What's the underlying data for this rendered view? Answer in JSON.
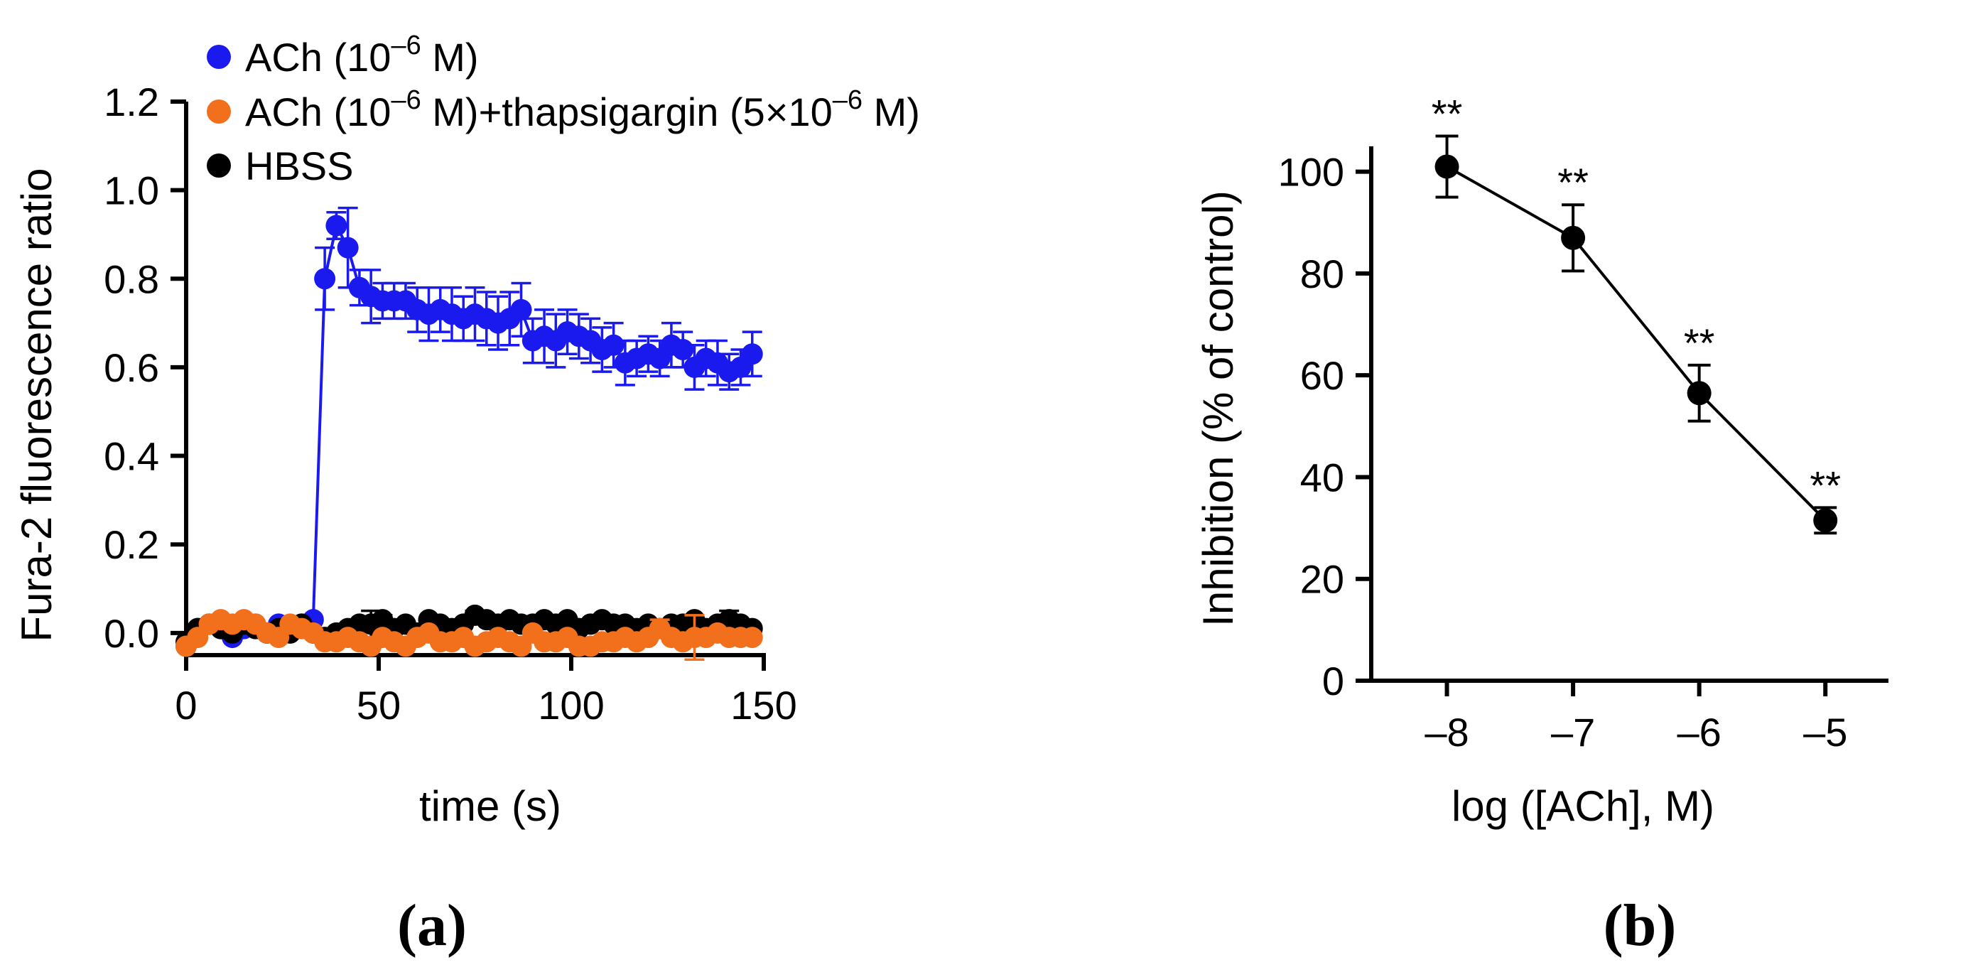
{
  "colors": {
    "ach": "#1a1aee",
    "thapsigargin": "#f26f1b",
    "hbss": "#000000"
  },
  "panels": {
    "a": "(a)",
    "b": "(b)"
  },
  "chart_data": [
    {
      "type": "scatter",
      "xlabel": "time (s)",
      "ylabel": "Fura-2 fluorescence ratio",
      "xlim": [
        0,
        150
      ],
      "ylim": [
        -0.05,
        1.2
      ],
      "xticks": [
        "0",
        "50",
        "100",
        "150"
      ],
      "yticks": [
        "0.0",
        "0.2",
        "0.4",
        "0.6",
        "0.8",
        "1.0",
        "1.2"
      ],
      "legend": {
        "placement": "top-left",
        "entries": [
          {
            "pre": "ACh (10",
            "sup": "–6",
            "post": " M)"
          },
          {
            "pre": "ACh (10",
            "sup": "–6",
            "post": " M)+thapsigargin (5×10",
            "sup2": "–6",
            "post2": " M)"
          },
          {
            "pre": "HBSS"
          }
        ]
      },
      "series": [
        {
          "color_key": "ach",
          "connected": true,
          "x": [
            0,
            3,
            6,
            9,
            12,
            15,
            18,
            21,
            24,
            27,
            30,
            33,
            36,
            39,
            42,
            45,
            48,
            51,
            54,
            57,
            60,
            63,
            66,
            69,
            72,
            75,
            78,
            81,
            84,
            87,
            90,
            93,
            96,
            99,
            102,
            105,
            108,
            111,
            114,
            117,
            120,
            123,
            126,
            129,
            132,
            135,
            138,
            141,
            144,
            147
          ],
          "y": [
            -0.03,
            0.01,
            0.02,
            0.01,
            -0.01,
            0.01,
            0.02,
            0.0,
            0.02,
            0.01,
            0.02,
            0.03,
            0.8,
            0.92,
            0.87,
            0.78,
            0.76,
            0.75,
            0.75,
            0.75,
            0.73,
            0.72,
            0.73,
            0.72,
            0.71,
            0.72,
            0.71,
            0.7,
            0.71,
            0.73,
            0.66,
            0.67,
            0.66,
            0.68,
            0.67,
            0.66,
            0.64,
            0.65,
            0.61,
            0.62,
            0.63,
            0.62,
            0.65,
            0.64,
            0.6,
            0.62,
            0.61,
            0.59,
            0.6,
            0.63
          ],
          "err": [
            0,
            0,
            0,
            0,
            0,
            0,
            0,
            0,
            0,
            0,
            0,
            0,
            0.07,
            0.03,
            0.09,
            0.04,
            0.06,
            0.04,
            0.04,
            0.04,
            0.05,
            0.06,
            0.05,
            0.06,
            0.05,
            0.06,
            0.06,
            0.06,
            0.06,
            0.06,
            0.05,
            0.06,
            0.06,
            0.05,
            0.05,
            0.05,
            0.05,
            0.05,
            0.05,
            0.04,
            0.04,
            0.04,
            0.05,
            0.04,
            0.05,
            0.04,
            0.05,
            0.04,
            0.04,
            0.05
          ]
        },
        {
          "color_key": "hbss",
          "connected": false,
          "x": [
            0,
            3,
            6,
            9,
            12,
            15,
            18,
            21,
            24,
            27,
            30,
            33,
            36,
            39,
            42,
            45,
            48,
            51,
            54,
            57,
            60,
            63,
            66,
            69,
            72,
            75,
            78,
            81,
            84,
            87,
            90,
            93,
            96,
            99,
            102,
            105,
            108,
            111,
            114,
            117,
            120,
            123,
            126,
            129,
            132,
            135,
            138,
            141,
            144,
            147
          ],
          "y": [
            -0.02,
            0.01,
            0.02,
            0.01,
            0.0,
            0.02,
            0.01,
            0.0,
            0.01,
            0.0,
            0.02,
            0.0,
            -0.01,
            0.0,
            0.01,
            0.02,
            0.02,
            0.03,
            0.01,
            0.02,
            0.0,
            0.03,
            0.02,
            0.01,
            0.02,
            0.04,
            0.03,
            0.02,
            0.03,
            0.02,
            0.02,
            0.03,
            0.02,
            0.03,
            0.01,
            0.02,
            0.03,
            0.02,
            0.02,
            0.01,
            0.02,
            0.01,
            0.02,
            0.02,
            0.03,
            0.01,
            0.02,
            0.03,
            0.02,
            0.01
          ],
          "err": [
            0,
            0,
            0,
            0,
            0,
            0,
            0,
            0,
            0,
            0,
            0,
            0,
            0,
            0,
            0,
            0,
            0.03,
            0.01,
            0,
            0,
            0,
            0,
            0,
            0,
            0,
            0.01,
            0,
            0,
            0.01,
            0,
            0.01,
            0,
            0,
            0,
            0,
            0,
            0,
            0,
            0,
            0,
            0,
            0,
            0,
            0,
            0,
            0,
            0.01,
            0.02,
            0,
            0
          ]
        },
        {
          "color_key": "thapsigargin",
          "connected": false,
          "x": [
            0,
            3,
            6,
            9,
            12,
            15,
            18,
            21,
            24,
            27,
            30,
            33,
            36,
            39,
            42,
            45,
            48,
            51,
            54,
            57,
            60,
            63,
            66,
            69,
            72,
            75,
            78,
            81,
            84,
            87,
            90,
            93,
            96,
            99,
            102,
            105,
            108,
            111,
            114,
            117,
            120,
            123,
            126,
            129,
            132,
            135,
            138,
            141,
            144,
            147
          ],
          "y": [
            -0.03,
            -0.01,
            0.02,
            0.03,
            0.02,
            0.03,
            0.02,
            0.0,
            -0.01,
            0.02,
            0.01,
            0.0,
            -0.02,
            -0.02,
            -0.01,
            -0.02,
            -0.03,
            -0.01,
            -0.02,
            -0.03,
            -0.01,
            0.0,
            -0.02,
            -0.02,
            -0.01,
            -0.03,
            -0.02,
            -0.01,
            -0.02,
            -0.03,
            0.0,
            -0.02,
            -0.02,
            -0.01,
            -0.03,
            -0.03,
            -0.02,
            -0.02,
            -0.01,
            -0.02,
            -0.01,
            0.01,
            -0.01,
            -0.02,
            -0.01,
            -0.01,
            0.0,
            -0.01,
            -0.01,
            -0.01
          ],
          "err": [
            0,
            0,
            0,
            0,
            0,
            0,
            0,
            0,
            0,
            0,
            0,
            0,
            0,
            0,
            0,
            0,
            0,
            0,
            0,
            0,
            0,
            0,
            0,
            0,
            0,
            0,
            0,
            0,
            0,
            0,
            0,
            0,
            0,
            0,
            0,
            0,
            0,
            0,
            0,
            0,
            0,
            0.02,
            0,
            0,
            0.05,
            0,
            0,
            0,
            0,
            0
          ]
        }
      ]
    },
    {
      "type": "line",
      "xlabel": "log ([ACh], M)",
      "ylabel": "Inhibition (% of control)",
      "xlim": [
        -8.6,
        -4.5
      ],
      "ylim": [
        0,
        110
      ],
      "xticks": [
        {
          "v": -8,
          "label": "–8"
        },
        {
          "v": -7,
          "label": "–7"
        },
        {
          "v": -6,
          "label": "–6"
        },
        {
          "v": -5,
          "label": "–5"
        }
      ],
      "yticks": [
        {
          "v": 0,
          "label": "0"
        },
        {
          "v": 20,
          "label": "20"
        },
        {
          "v": 40,
          "label": "40"
        },
        {
          "v": 60,
          "label": "60"
        },
        {
          "v": 80,
          "label": "80"
        },
        {
          "v": 100,
          "label": "100"
        }
      ],
      "series": [
        {
          "color_key": "hbss",
          "x": [
            -8,
            -7,
            -6,
            -5
          ],
          "y": [
            101,
            87,
            56.5,
            31.5
          ],
          "err": [
            6,
            6.5,
            5.5,
            2.5
          ],
          "annotations": [
            "**",
            "**",
            "**",
            "**"
          ]
        }
      ]
    }
  ]
}
